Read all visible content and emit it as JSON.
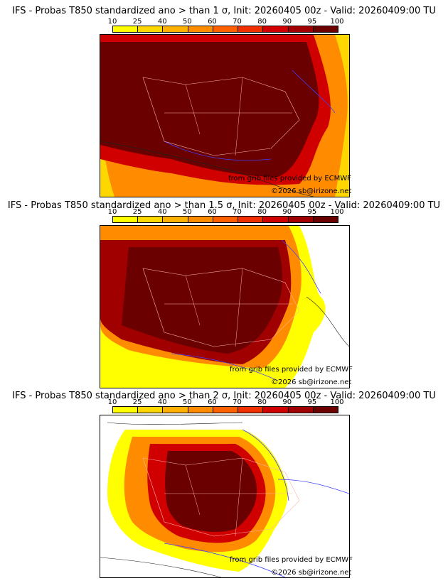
{
  "colorbar": {
    "ticks": [
      "10",
      "25",
      "40",
      "50",
      "60",
      "70",
      "80",
      "90",
      "95",
      "100"
    ],
    "colors": [
      "#ffff00",
      "#ffd700",
      "#ffb000",
      "#ff8c00",
      "#ff6000",
      "#f03000",
      "#d00000",
      "#a00000",
      "#6a0000"
    ]
  },
  "credits": {
    "grib": "from grib files provided by ECMWF",
    "copyright": "©2026 sb@irizone.net"
  },
  "panels": [
    {
      "title": "IFS - Probas T850  standardized ano > than 1 σ, Init: 20260405 00z - Valid: 20260409:00 TU"
    },
    {
      "title": "IFS - Probas T850  standardized ano > than 1.5 σ, Init: 20260405 00z - Valid: 20260409:00 TU"
    },
    {
      "title": "IFS - Probas T850  standardized ano > than 2 σ, Init: 20260405 00z - Valid: 20260409:00 TU"
    }
  ]
}
